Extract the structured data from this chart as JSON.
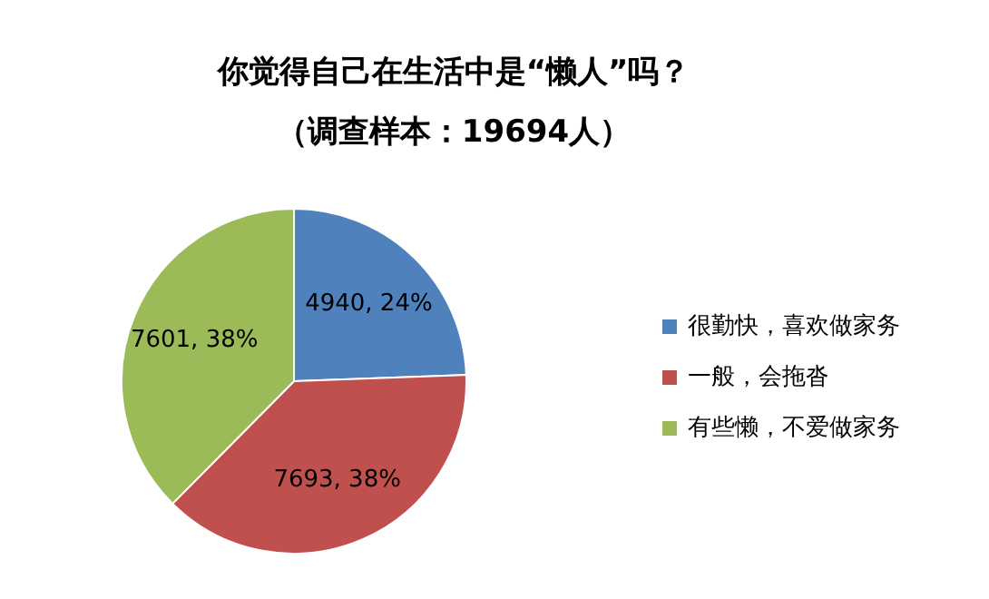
{
  "chart_data": {
    "type": "pie",
    "title": "你觉得自己在生活中是“懒人”吗？",
    "subtitle": "（调查样本：19694人）",
    "categories": [
      "很勤快，喜欢做家务",
      "一般，会拖沓",
      "有些懒，不爱做家务"
    ],
    "values": [
      4940,
      7693,
      7601
    ],
    "colors": [
      "#4f81bd",
      "#c0504d",
      "#9bbb59"
    ],
    "value_labels": [
      "4940, 24%",
      "7693, 38%",
      "7601, 38%"
    ],
    "legend": "right"
  }
}
